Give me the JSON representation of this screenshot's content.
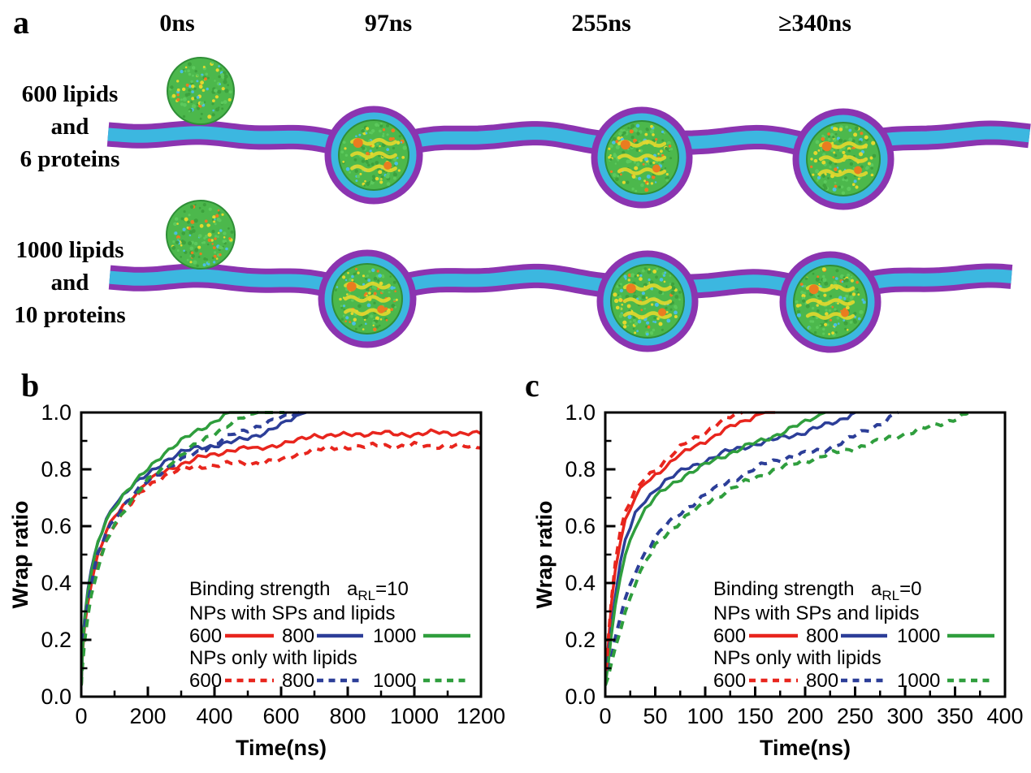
{
  "panel_a": {
    "label": "a",
    "time_labels": [
      "0ns",
      "97ns",
      "255ns",
      "≥340ns"
    ],
    "rows": [
      {
        "name": "600-lipids-6-proteins",
        "label_lines": [
          "600 lipids",
          "and",
          "6 proteins"
        ]
      },
      {
        "name": "1000-lipids-10-proteins",
        "label_lines": [
          "1000 lipids",
          "and",
          "10 proteins"
        ]
      }
    ]
  },
  "panel_b": {
    "label": "b"
  },
  "panel_c": {
    "label": "c"
  },
  "colors": {
    "series_red": "#e8251d",
    "series_blue": "#2c3e98",
    "series_green": "#2f9e3d",
    "membrane_purple": "#8b34b0",
    "membrane_cyan": "#3cb7e0",
    "np_green": "#4cb84c",
    "np_green_dark": "#2f8f37",
    "np_yellow": "#e3d82e",
    "np_orange": "#ea7c20",
    "axis": "#000000"
  },
  "chart_data": [
    {
      "id": "b",
      "type": "line",
      "title": "",
      "xlabel": "Time(ns)",
      "ylabel": "Wrap ratio",
      "xlim": [
        0,
        1200
      ],
      "ylim": [
        0.0,
        1.0
      ],
      "xticks": [
        0,
        200,
        400,
        600,
        800,
        1000,
        1200
      ],
      "yticks": [
        0.0,
        0.2,
        0.4,
        0.6,
        0.8,
        1.0
      ],
      "ytick_labels": [
        "0.0",
        "0.2",
        "0.4",
        "0.6",
        "0.8",
        "1.0"
      ],
      "grid": false,
      "legend_position": "lower right inside",
      "legend": {
        "binding_label": "Binding strength",
        "param": "a",
        "param_sub": "RL",
        "param_value": "=10",
        "group_solid": "NPs with SPs and lipids",
        "group_dashed": "NPs only with lipids",
        "sizes": [
          "600",
          "800",
          "1000"
        ]
      },
      "series": [
        {
          "name": "600 NPs with SPs and lipids",
          "color": "red",
          "dashed": false,
          "x": [
            0,
            4,
            10,
            20,
            30,
            50,
            75,
            100,
            125,
            150,
            175,
            200,
            250,
            300,
            350,
            400,
            450,
            500,
            530,
            560,
            600,
            650,
            700,
            750,
            800,
            850,
            900,
            950,
            1000,
            1050,
            1100,
            1150,
            1200
          ],
          "y": [
            0.04,
            0.15,
            0.25,
            0.34,
            0.4,
            0.5,
            0.58,
            0.63,
            0.67,
            0.7,
            0.73,
            0.76,
            0.79,
            0.82,
            0.84,
            0.85,
            0.87,
            0.875,
            0.87,
            0.88,
            0.89,
            0.9,
            0.92,
            0.92,
            0.92,
            0.925,
            0.93,
            0.92,
            0.925,
            0.93,
            0.925,
            0.93,
            0.925
          ]
        },
        {
          "name": "800 NPs with SPs and lipids",
          "color": "blue",
          "dashed": false,
          "x": [
            0,
            4,
            10,
            20,
            30,
            50,
            75,
            100,
            125,
            150,
            200,
            250,
            300,
            350,
            400,
            450,
            500,
            550,
            600,
            630,
            660,
            675
          ],
          "y": [
            0.04,
            0.17,
            0.28,
            0.38,
            0.44,
            0.54,
            0.62,
            0.68,
            0.71,
            0.74,
            0.78,
            0.83,
            0.86,
            0.875,
            0.885,
            0.895,
            0.91,
            0.93,
            0.955,
            0.975,
            0.995,
            1.0
          ]
        },
        {
          "name": "1000 NPs with SPs and lipids",
          "color": "green",
          "dashed": false,
          "x": [
            0,
            4,
            10,
            20,
            30,
            50,
            75,
            100,
            125,
            150,
            200,
            250,
            300,
            350,
            400,
            430,
            445,
            560
          ],
          "y": [
            0.04,
            0.16,
            0.27,
            0.37,
            0.43,
            0.54,
            0.62,
            0.67,
            0.71,
            0.74,
            0.8,
            0.86,
            0.9,
            0.935,
            0.97,
            0.99,
            1.0,
            1.0
          ]
        },
        {
          "name": "600 NPs only with lipids",
          "color": "red",
          "dashed": true,
          "x": [
            0,
            4,
            10,
            20,
            30,
            50,
            75,
            100,
            125,
            150,
            175,
            200,
            250,
            300,
            350,
            400,
            450,
            500,
            550,
            600,
            640,
            680,
            720,
            760,
            800,
            850,
            900,
            950,
            1000,
            1050,
            1100,
            1150,
            1200
          ],
          "y": [
            0.04,
            0.13,
            0.22,
            0.31,
            0.37,
            0.47,
            0.55,
            0.61,
            0.65,
            0.68,
            0.71,
            0.74,
            0.78,
            0.8,
            0.81,
            0.815,
            0.82,
            0.82,
            0.825,
            0.83,
            0.85,
            0.865,
            0.87,
            0.875,
            0.88,
            0.88,
            0.885,
            0.88,
            0.885,
            0.88,
            0.885,
            0.88,
            0.875
          ]
        },
        {
          "name": "800 NPs only with lipids",
          "color": "blue",
          "dashed": true,
          "x": [
            0,
            4,
            10,
            20,
            30,
            50,
            75,
            100,
            125,
            150,
            200,
            250,
            300,
            350,
            400,
            450,
            500,
            550,
            600,
            630,
            655
          ],
          "y": [
            0.04,
            0.14,
            0.24,
            0.33,
            0.39,
            0.5,
            0.58,
            0.63,
            0.67,
            0.7,
            0.76,
            0.8,
            0.83,
            0.86,
            0.89,
            0.92,
            0.94,
            0.96,
            0.98,
            0.99,
            1.0
          ]
        },
        {
          "name": "1000 NPs only with lipids",
          "color": "green",
          "dashed": true,
          "x": [
            0,
            4,
            10,
            20,
            30,
            50,
            75,
            100,
            125,
            150,
            200,
            250,
            300,
            350,
            400,
            450,
            500,
            530,
            610
          ],
          "y": [
            0.04,
            0.12,
            0.2,
            0.28,
            0.35,
            0.45,
            0.54,
            0.61,
            0.65,
            0.69,
            0.76,
            0.81,
            0.85,
            0.89,
            0.93,
            0.96,
            0.99,
            1.0,
            1.0
          ]
        }
      ]
    },
    {
      "id": "c",
      "type": "line",
      "title": "",
      "xlabel": "Time(ns)",
      "ylabel": "Wrap ratio",
      "xlim": [
        0,
        400
      ],
      "ylim": [
        0.0,
        1.0
      ],
      "xticks": [
        0,
        50,
        100,
        150,
        200,
        250,
        300,
        350,
        400
      ],
      "yticks": [
        0.0,
        0.2,
        0.4,
        0.6,
        0.8,
        1.0
      ],
      "ytick_labels": [
        "0.0",
        "0.2",
        "0.4",
        "0.6",
        "0.8",
        "1.0"
      ],
      "grid": false,
      "legend_position": "lower right inside",
      "legend": {
        "binding_label": "Binding strength",
        "param": "a",
        "param_sub": "RL",
        "param_value": "=0",
        "group_solid": "NPs with SPs and lipids",
        "group_dashed": "NPs only with lipids",
        "sizes": [
          "600",
          "800",
          "1000"
        ]
      },
      "series": [
        {
          "name": "600 NPs with SPs and lipids",
          "color": "red",
          "dashed": false,
          "x": [
            0,
            3,
            6,
            10,
            15,
            20,
            30,
            40,
            50,
            60,
            70,
            80,
            90,
            100,
            110,
            120,
            130,
            140,
            150,
            160,
            170
          ],
          "y": [
            0.04,
            0.18,
            0.32,
            0.45,
            0.55,
            0.62,
            0.7,
            0.75,
            0.78,
            0.81,
            0.84,
            0.86,
            0.88,
            0.9,
            0.92,
            0.94,
            0.955,
            0.97,
            0.99,
            1.0,
            1.0
          ]
        },
        {
          "name": "800 NPs with SPs and lipids",
          "color": "blue",
          "dashed": false,
          "x": [
            0,
            3,
            6,
            10,
            15,
            20,
            30,
            40,
            50,
            60,
            80,
            100,
            120,
            140,
            160,
            180,
            200,
            220,
            235,
            250
          ],
          "y": [
            0.04,
            0.14,
            0.25,
            0.36,
            0.47,
            0.55,
            0.64,
            0.69,
            0.73,
            0.76,
            0.8,
            0.83,
            0.86,
            0.88,
            0.895,
            0.915,
            0.93,
            0.955,
            0.975,
            1.0
          ]
        },
        {
          "name": "1000 NPs with SPs and lipids",
          "color": "green",
          "dashed": false,
          "x": [
            0,
            3,
            6,
            10,
            15,
            20,
            30,
            40,
            50,
            60,
            80,
            100,
            120,
            140,
            160,
            180,
            200,
            210,
            220
          ],
          "y": [
            0.04,
            0.12,
            0.21,
            0.31,
            0.42,
            0.5,
            0.6,
            0.66,
            0.7,
            0.73,
            0.78,
            0.815,
            0.85,
            0.88,
            0.905,
            0.935,
            0.965,
            0.985,
            1.0
          ]
        },
        {
          "name": "600 NPs only with lipids",
          "color": "red",
          "dashed": true,
          "x": [
            0,
            3,
            6,
            10,
            15,
            20,
            30,
            40,
            50,
            60,
            70,
            80,
            90,
            100,
            110,
            120,
            130,
            137
          ],
          "y": [
            0.04,
            0.2,
            0.34,
            0.48,
            0.58,
            0.65,
            0.72,
            0.77,
            0.8,
            0.83,
            0.86,
            0.89,
            0.91,
            0.93,
            0.955,
            0.975,
            0.99,
            1.0
          ]
        },
        {
          "name": "800 NPs only with lipids",
          "color": "blue",
          "dashed": true,
          "x": [
            0,
            3,
            6,
            10,
            15,
            20,
            30,
            40,
            50,
            60,
            80,
            100,
            120,
            140,
            160,
            180,
            200,
            220,
            240,
            260,
            280,
            293
          ],
          "y": [
            0.04,
            0.08,
            0.13,
            0.2,
            0.28,
            0.34,
            0.44,
            0.51,
            0.56,
            0.6,
            0.66,
            0.71,
            0.75,
            0.785,
            0.82,
            0.84,
            0.855,
            0.87,
            0.9,
            0.935,
            0.97,
            1.0
          ]
        },
        {
          "name": "1000 NPs only with lipids",
          "color": "green",
          "dashed": true,
          "x": [
            0,
            3,
            6,
            10,
            15,
            20,
            30,
            40,
            50,
            60,
            80,
            100,
            120,
            140,
            160,
            180,
            200,
            220,
            240,
            260,
            280,
            300,
            320,
            340,
            365
          ],
          "y": [
            0.04,
            0.07,
            0.11,
            0.17,
            0.24,
            0.3,
            0.4,
            0.47,
            0.53,
            0.57,
            0.63,
            0.68,
            0.72,
            0.755,
            0.785,
            0.81,
            0.83,
            0.85,
            0.865,
            0.885,
            0.905,
            0.925,
            0.945,
            0.965,
            1.0
          ]
        }
      ]
    }
  ]
}
